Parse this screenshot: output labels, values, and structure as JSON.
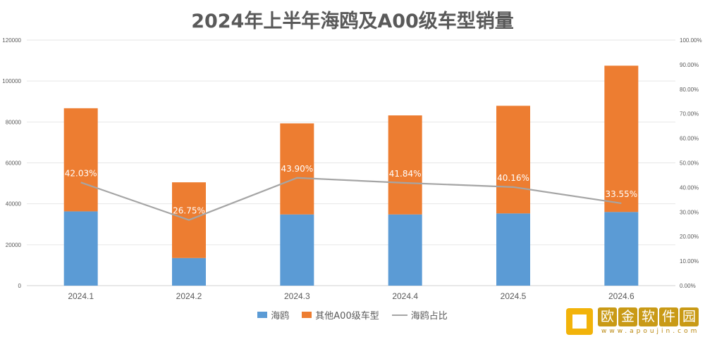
{
  "chart_data": {
    "type": "bar",
    "stacked": true,
    "title": "2024年上半年海鸥及A00级车型销量",
    "categories": [
      "2024.1",
      "2024.2",
      "2024.3",
      "2024.4",
      "2024.5",
      "2024.6"
    ],
    "series": [
      {
        "name": "海鸥",
        "type": "bar",
        "axis": "left",
        "color": "#5b9bd5",
        "values": [
          36300,
          13500,
          34800,
          34800,
          35300,
          36000
        ]
      },
      {
        "name": "其他A00级车型",
        "type": "bar",
        "axis": "left",
        "color": "#ed7d31",
        "values": [
          50400,
          37000,
          44500,
          48400,
          52600,
          71500
        ]
      },
      {
        "name": "海鸥占比",
        "type": "line",
        "axis": "right",
        "color": "#a5a5a5",
        "values": [
          42.03,
          26.75,
          43.9,
          41.84,
          40.16,
          33.55
        ],
        "labels": [
          "42.03%",
          "26.75%",
          "43.90%",
          "41.84%",
          "40.16%",
          "33.55%"
        ]
      }
    ],
    "ylim": [
      0,
      120000
    ],
    "yticks": [
      "0",
      "20000",
      "40000",
      "60000",
      "80000",
      "100000",
      "120000"
    ],
    "y2lim": [
      0,
      100
    ],
    "y2ticks": [
      "0.00%",
      "10.00%",
      "20.00%",
      "30.00%",
      "40.00%",
      "50.00%",
      "60.00%",
      "70.00%",
      "80.00%",
      "90.00%",
      "100.00%"
    ],
    "grid": true,
    "legend": "bottom"
  },
  "watermark": {
    "chars": [
      "欧",
      "金",
      "软",
      "件",
      "园"
    ],
    "url": "www.apoujin.com",
    "logo_color": "#f2b30a"
  }
}
